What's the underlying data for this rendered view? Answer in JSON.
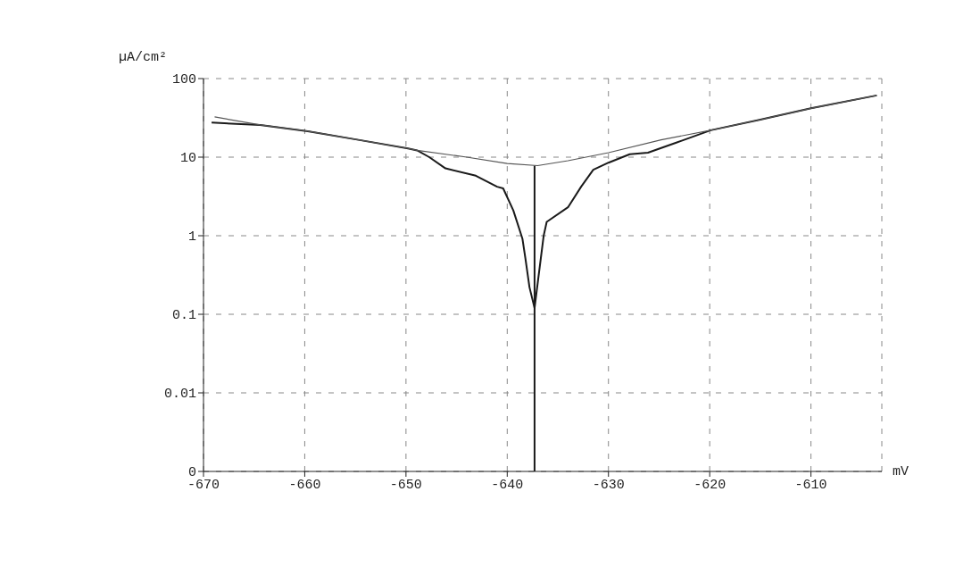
{
  "chart_data": {
    "type": "line",
    "xlabel": "mV",
    "ylabel": "µA/cm²",
    "log": "y",
    "grid": true,
    "xlim": [
      -670,
      -603
    ],
    "xticks": [
      -670,
      -660,
      -650,
      -640,
      -630,
      -620,
      -610
    ],
    "ylim": [
      0.001,
      100
    ],
    "yticks": [
      {
        "value": 0.001,
        "label": "0"
      },
      0.01,
      0.1,
      1,
      10,
      100
    ],
    "series": [
      {
        "color": "#555555",
        "x": [
          -668.9,
          -664.4,
          -659.7,
          -654.7,
          -649.8,
          -648.9,
          -644.0,
          -640.0,
          -637.0,
          -634.0,
          -630.0,
          -624.8,
          -619.9,
          -615.0,
          -610.0,
          -603.5
        ],
        "values": [
          32.5,
          25.7,
          21.4,
          16.6,
          12.9,
          12.2,
          10.0,
          8.3,
          7.8,
          9.0,
          11.4,
          16.6,
          22,
          30,
          41.8,
          61
        ]
      },
      {
        "color": "#1a1a1a",
        "x": [
          -669.2,
          -664.4,
          -659.7,
          -654.7,
          -649.8,
          -648.9,
          -647.7,
          -646.1,
          -643.1,
          -641.0,
          -640.4,
          -639.4,
          -638.5,
          -638.2,
          -637.8,
          -637.3,
          -636.9,
          -636.4,
          -636.1,
          -634.0,
          -632.7,
          -631.5,
          -630.0,
          -627.9,
          -626.1,
          -623.3,
          -619.9,
          -615.0,
          -610.0,
          -603.5
        ],
        "values": [
          27.5,
          25.7,
          21.4,
          16.6,
          12.9,
          12.2,
          10.0,
          7.2,
          5.8,
          4.2,
          4.0,
          2.1,
          0.92,
          0.51,
          0.22,
          0.12,
          0.31,
          1.0,
          1.5,
          2.3,
          4.2,
          6.9,
          8.5,
          10.9,
          11.4,
          15.3,
          22,
          30,
          41.8,
          61
        ]
      },
      {
        "color": "#1a1a1a",
        "x": [
          -637.3,
          -637.3
        ],
        "values": [
          0.001,
          7.8
        ]
      }
    ]
  }
}
